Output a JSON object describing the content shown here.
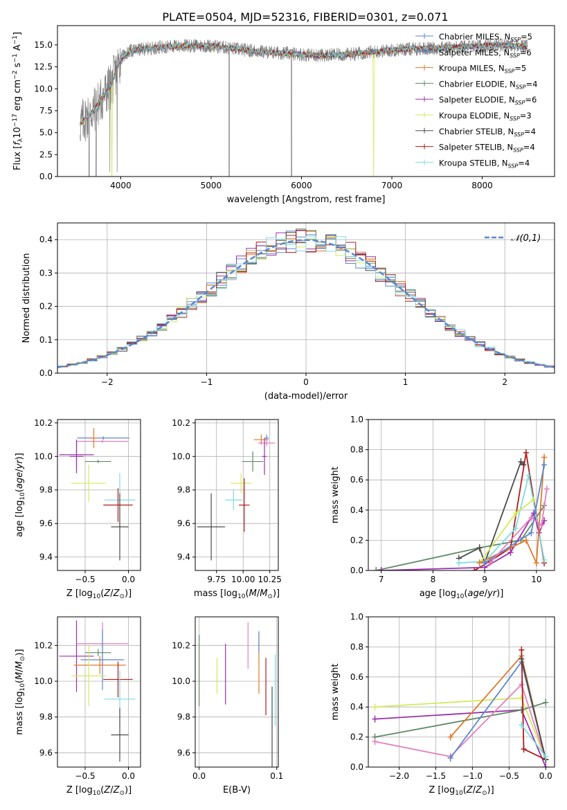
{
  "figure_title": "PLATE=0504, MJD=52316, FIBERID=0301, z=0.071",
  "colors": {
    "Chabrier MILES": "#5b87d1",
    "Salpeter MILES": "#5b87d1",
    "Kroupa MILES": "#e0782a",
    "Chabrier ELODIE": "#5f8a64",
    "Salpeter ELODIE": "#9b2fae",
    "Kroupa ELODIE": "#d4ea5a",
    "Chabrier STELIB": "#4a4a4a",
    "Salpeter STELIB": "#b21a1a",
    "Kroupa STELIB": "#7fdbe0",
    "Pink": "#e37fbe",
    "data": "#7f7f7f",
    "gauss": "#5b87d1"
  },
  "legend_spectrum": [
    {
      "model": "Chabrier MILES",
      "nssp": "5"
    },
    {
      "model": "Salpeter MILES",
      "nssp": "6"
    },
    {
      "model": "Kroupa MILES",
      "nssp": "5"
    },
    {
      "model": "Chabrier ELODIE",
      "nssp": "4"
    },
    {
      "model": "Salpeter ELODIE",
      "nssp": "6"
    },
    {
      "model": "Kroupa ELODIE",
      "nssp": "3"
    },
    {
      "model": "Chabrier STELIB",
      "nssp": "4"
    },
    {
      "model": "Salpeter STELIB",
      "nssp": "4"
    },
    {
      "model": "Kroupa STELIB",
      "nssp": "4"
    }
  ],
  "legend_hist": {
    "label": "𝒩(0,1)"
  },
  "chart_data": [
    {
      "id": "spectrum",
      "type": "line",
      "title": "PLATE=0504, MJD=52316, FIBERID=0301, z=0.071",
      "xlabel": "wavelength [Angstrom, rest frame]",
      "ylabel": "Flux [f_λ 10^-17 erg cm^-2 s^-1 A^-1]",
      "xlim": [
        3300,
        8800
      ],
      "ylim": [
        0,
        17.2
      ],
      "xticks": [
        4000,
        5000,
        6000,
        7000,
        8000
      ],
      "yticks": [
        0.0,
        2.5,
        5.0,
        7.5,
        10.0,
        12.5,
        15.0
      ],
      "data_continuum": [
        [
          3550,
          6.0
        ],
        [
          3700,
          7.5
        ],
        [
          3900,
          10.5
        ],
        [
          4000,
          13.5
        ],
        [
          4100,
          14.3
        ],
        [
          4300,
          14.6
        ],
        [
          4500,
          14.8
        ],
        [
          4700,
          14.9
        ],
        [
          5000,
          14.9
        ],
        [
          5300,
          14.5
        ],
        [
          5600,
          14.2
        ],
        [
          5900,
          14.0
        ],
        [
          6200,
          13.8
        ],
        [
          6500,
          13.9
        ],
        [
          6800,
          14.2
        ],
        [
          7100,
          14.5
        ],
        [
          7400,
          14.6
        ],
        [
          7800,
          14.8
        ],
        [
          8200,
          15.0
        ],
        [
          8500,
          14.8
        ]
      ]
    },
    {
      "id": "residuals",
      "type": "histogram",
      "xlabel": "(data-model)/error",
      "ylabel": "Normed distribution",
      "xlim": [
        -2.5,
        2.5
      ],
      "ylim": [
        0,
        0.45
      ],
      "xticks": [
        -2,
        -1,
        0,
        1,
        2
      ],
      "yticks": [
        0.0,
        0.1,
        0.2,
        0.3,
        0.4
      ],
      "bin_width": 0.1,
      "gauss": {
        "mu": 0,
        "sigma": 1
      }
    },
    {
      "id": "age_vs_Z",
      "type": "errorbar",
      "xlabel": "Z [log10(Z/Z⊙)]",
      "ylabel": "age  [log10(age/yr)]",
      "xlim": [
        -0.82,
        0.14
      ],
      "ylim": [
        9.32,
        10.22
      ],
      "xticks": [
        -0.5,
        0.0
      ],
      "xtick_labels": [
        "−0.5",
        "0.0"
      ],
      "yticks": [
        9.4,
        9.6,
        9.8,
        10.0,
        10.2
      ],
      "points": [
        {
          "model": "Salpeter ELODIE",
          "x": -0.6,
          "xerr": 0.2,
          "y": 10.01,
          "yerr": 0.08
        },
        {
          "model": "Chabrier MILES",
          "x": -0.29,
          "xerr": 0.3,
          "y": 10.11,
          "yerr": 0.01
        },
        {
          "model": "Pink",
          "x": -0.3,
          "xerr": 0.3,
          "y": 10.09,
          "yerr": 0.01
        },
        {
          "model": "Kroupa MILES",
          "x": -0.4,
          "xerr": 0.05,
          "y": 10.11,
          "yerr": 0.06
        },
        {
          "model": "Chabrier ELODIE",
          "x": -0.35,
          "xerr": 0.15,
          "y": 9.97,
          "yerr": 0.01
        },
        {
          "model": "Kroupa ELODIE",
          "x": -0.46,
          "xerr": 0.2,
          "y": 9.84,
          "yerr": 0.11
        },
        {
          "model": "Kroupa STELIB",
          "x": -0.1,
          "xerr": 0.18,
          "y": 9.74,
          "yerr": 0.16
        },
        {
          "model": "Salpeter STELIB",
          "x": -0.12,
          "xerr": 0.17,
          "y": 9.71,
          "yerr": 0.1
        },
        {
          "model": "Chabrier STELIB",
          "x": -0.1,
          "xerr": 0.1,
          "y": 9.58,
          "yerr": 0.2
        },
        {
          "model": "Salpeter ELODIE",
          "x": -0.6,
          "xerr": 0.08,
          "y": 10.0,
          "yerr": 0.1
        }
      ]
    },
    {
      "id": "age_vs_mass",
      "type": "errorbar",
      "xlabel": "mass [log10(M/M⊙)]",
      "ylabel": "",
      "xlim": [
        9.55,
        10.33
      ],
      "ylim": [
        9.32,
        10.22
      ],
      "xticks": [
        9.75,
        10.0,
        10.25
      ],
      "xtick_labels": [
        "9.75",
        "10.00",
        "10.25"
      ],
      "yticks": [
        9.4,
        9.6,
        9.8,
        10.0,
        10.2
      ],
      "points": [
        {
          "model": "Chabrier STELIB",
          "x": 9.7,
          "xerr": 0.13,
          "y": 9.58,
          "yerr": 0.2
        },
        {
          "model": "Kroupa STELIB",
          "x": 9.91,
          "xerr": 0.08,
          "y": 9.74,
          "yerr": 0.06
        },
        {
          "model": "Kroupa ELODIE",
          "x": 9.98,
          "xerr": 0.1,
          "y": 9.84,
          "yerr": 0.06
        },
        {
          "model": "Salpeter STELIB",
          "x": 10.01,
          "xerr": 0.05,
          "y": 9.71,
          "yerr": 0.16
        },
        {
          "model": "Chabrier ELODIE",
          "x": 10.09,
          "xerr": 0.1,
          "y": 9.97,
          "yerr": 0.06
        },
        {
          "model": "Chabrier MILES",
          "x": 10.22,
          "xerr": 0.02,
          "y": 10.11,
          "yerr": 0.02
        },
        {
          "model": "Kroupa MILES",
          "x": 10.17,
          "xerr": 0.07,
          "y": 10.1,
          "yerr": 0.03
        },
        {
          "model": "Pink",
          "x": 10.22,
          "xerr": 0.08,
          "y": 10.08,
          "yerr": 0.02
        },
        {
          "model": "Salpeter ELODIE",
          "x": 10.2,
          "xerr": 0.02,
          "y": 10.0,
          "yerr": 0.11
        }
      ]
    },
    {
      "id": "mw_vs_age",
      "type": "line",
      "xlabel": "age  [log10(age/yr)]",
      "ylabel": "mass weight",
      "xlim": [
        6.75,
        10.35
      ],
      "ylim": [
        0.0,
        1.0
      ],
      "xticks": [
        7,
        8,
        9,
        10
      ],
      "yticks": [
        0.0,
        0.2,
        0.4,
        0.6,
        0.8,
        1.0
      ],
      "series": [
        {
          "model": "Chabrier ELODIE",
          "x": [
            6.9,
            8.9,
            9.7,
            10.15
          ],
          "y": [
            0.0,
            0.15,
            0.2,
            0.43
          ]
        },
        {
          "model": "Chabrier STELIB",
          "x": [
            8.5,
            8.9,
            9.0,
            9.7,
            9.75
          ],
          "y": [
            0.08,
            0.15,
            0.05,
            0.72,
            0.7
          ]
        },
        {
          "model": "Salpeter STELIB",
          "x": [
            8.8,
            9.1,
            9.5,
            9.8,
            10.15
          ],
          "y": [
            0.0,
            0.06,
            0.15,
            0.78,
            0.05
          ]
        },
        {
          "model": "Kroupa STELIB",
          "x": [
            8.5,
            9.0,
            9.6,
            9.85,
            10.15
          ],
          "y": [
            0.05,
            0.06,
            0.28,
            0.63,
            0.07
          ]
        },
        {
          "model": "Kroupa ELODIE",
          "x": [
            8.9,
            9.6,
            9.95
          ],
          "y": [
            0.05,
            0.38,
            0.47
          ]
        },
        {
          "model": "Salpeter ELODIE",
          "x": [
            7.0,
            9.0,
            9.5,
            9.95,
            10.05,
            10.15
          ],
          "y": [
            0.0,
            0.02,
            0.12,
            0.38,
            0.25,
            0.33
          ]
        },
        {
          "model": "Kroupa MILES",
          "x": [
            8.9,
            9.8,
            10.0,
            10.15
          ],
          "y": [
            0.05,
            0.2,
            0.05,
            0.75
          ]
        },
        {
          "model": "Chabrier MILES",
          "x": [
            9.0,
            9.9,
            10.15
          ],
          "y": [
            0.05,
            0.25,
            0.7
          ]
        },
        {
          "model": "Pink",
          "x": [
            9.1,
            9.9,
            10.1,
            10.2
          ],
          "y": [
            0.05,
            0.35,
            0.3,
            0.54
          ]
        }
      ]
    },
    {
      "id": "mass_vs_Z",
      "type": "errorbar",
      "xlabel": "Z [log10(Z/Z⊙)]",
      "ylabel": "mass [log10(M/M⊙)]",
      "xlim": [
        -0.82,
        0.14
      ],
      "ylim": [
        9.52,
        10.36
      ],
      "xticks": [
        -0.5,
        0.0
      ],
      "xtick_labels": [
        "−0.5",
        "0.0"
      ],
      "yticks": [
        9.6,
        9.8,
        10.0,
        10.2
      ],
      "points": [
        {
          "model": "Salpeter ELODIE",
          "x": -0.6,
          "xerr": 0.2,
          "y": 10.14,
          "yerr": 0.2
        },
        {
          "model": "Pink",
          "x": -0.3,
          "xerr": 0.3,
          "y": 10.21,
          "yerr": 0.12
        },
        {
          "model": "Chabrier ELODIE",
          "x": -0.35,
          "xerr": 0.15,
          "y": 10.16,
          "yerr": 0.02
        },
        {
          "model": "Chabrier MILES",
          "x": -0.3,
          "xerr": 0.25,
          "y": 10.12,
          "yerr": 0.17
        },
        {
          "model": "Kroupa MILES",
          "x": -0.33,
          "xerr": 0.3,
          "y": 10.09,
          "yerr": 0.05
        },
        {
          "model": "Kroupa ELODIE",
          "x": -0.46,
          "xerr": 0.2,
          "y": 10.03,
          "yerr": 0.17
        },
        {
          "model": "Salpeter STELIB",
          "x": -0.12,
          "xerr": 0.17,
          "y": 10.01,
          "yerr": 0.1
        },
        {
          "model": "Kroupa STELIB",
          "x": -0.1,
          "xerr": 0.18,
          "y": 9.9,
          "yerr": 0.16
        },
        {
          "model": "Chabrier STELIB",
          "x": -0.1,
          "xerr": 0.1,
          "y": 9.7,
          "yerr": 0.15
        }
      ]
    },
    {
      "id": "mass_vs_ebv",
      "type": "errorbar",
      "xlabel": "E(B-V)",
      "ylabel": "",
      "xlim": [
        -0.005,
        0.102
      ],
      "ylim": [
        9.52,
        10.36
      ],
      "xticks": [
        0.0,
        0.1
      ],
      "xtick_labels": [
        "0.0",
        "0.1"
      ],
      "yticks": [
        9.6,
        9.8,
        10.0,
        10.2
      ],
      "points": [
        {
          "model": "Chabrier ELODIE",
          "x": 0.0,
          "xerr": 0.0,
          "y": 10.06,
          "yerr": 0.2
        },
        {
          "model": "Kroupa ELODIE",
          "x": 0.023,
          "xerr": 0.0,
          "y": 10.03,
          "yerr": 0.1
        },
        {
          "model": "Salpeter ELODIE",
          "x": 0.034,
          "xerr": 0.0,
          "y": 10.04,
          "yerr": 0.17
        },
        {
          "model": "Pink",
          "x": 0.063,
          "xerr": 0.0,
          "y": 10.2,
          "yerr": 0.13
        },
        {
          "model": "Kroupa MILES",
          "x": 0.077,
          "xerr": 0.0,
          "y": 10.1,
          "yerr": 0.17
        },
        {
          "model": "Chabrier MILES",
          "x": 0.077,
          "xerr": 0.0,
          "y": 10.22,
          "yerr": 0.06
        },
        {
          "model": "Salpeter STELIB",
          "x": 0.086,
          "xerr": 0.0,
          "y": 9.97,
          "yerr": 0.16
        },
        {
          "model": "Chabrier STELIB",
          "x": 0.094,
          "xerr": 0.0,
          "y": 9.73,
          "yerr": 0.24
        },
        {
          "model": "Kroupa STELIB",
          "x": 0.098,
          "xerr": 0.0,
          "y": 9.95,
          "yerr": 0.2
        }
      ]
    },
    {
      "id": "mw_vs_Z",
      "type": "line",
      "xlabel": "Z [log10(Z/Z⊙)]",
      "ylabel": "mass weight",
      "xlim": [
        -2.42,
        0.12
      ],
      "ylim": [
        0.0,
        1.0
      ],
      "xticks": [
        -2.0,
        -1.5,
        -1.0,
        -0.5,
        0.0
      ],
      "xtick_labels": [
        "−2.0",
        "−1.5",
        "−1.0",
        "−0.5",
        "0.0"
      ],
      "yticks": [
        0.0,
        0.2,
        0.4,
        0.6,
        0.8,
        1.0
      ],
      "series": [
        {
          "model": "Kroupa ELODIE",
          "x": [
            -2.33,
            -0.33,
            0.0
          ],
          "y": [
            0.4,
            0.46,
            0.05
          ]
        },
        {
          "model": "Salpeter ELODIE",
          "x": [
            -2.33,
            -0.33,
            0.0
          ],
          "y": [
            0.32,
            0.38,
            0.0
          ]
        },
        {
          "model": "Chabrier ELODIE",
          "x": [
            -2.33,
            -0.33,
            0.0
          ],
          "y": [
            0.2,
            0.38,
            0.43
          ]
        },
        {
          "model": "Pink",
          "x": [
            -2.33,
            -1.3,
            -0.33,
            0.0
          ],
          "y": [
            0.17,
            0.07,
            0.55,
            0.05
          ]
        },
        {
          "model": "Chabrier MILES",
          "x": [
            -1.3,
            -0.33,
            0.0
          ],
          "y": [
            0.06,
            0.7,
            0.05
          ]
        },
        {
          "model": "Kroupa MILES",
          "x": [
            -1.3,
            -0.33,
            0.0
          ],
          "y": [
            0.2,
            0.74,
            0.05
          ]
        },
        {
          "model": "Salpeter STELIB",
          "x": [
            -0.33,
            -0.3,
            0.0
          ],
          "y": [
            0.78,
            0.12,
            0.05
          ]
        },
        {
          "model": "Chabrier STELIB",
          "x": [
            -0.33,
            0.0
          ],
          "y": [
            0.72,
            0.05
          ]
        },
        {
          "model": "Kroupa STELIB",
          "x": [
            -0.33,
            0.0
          ],
          "y": [
            0.28,
            0.07
          ]
        }
      ]
    }
  ]
}
